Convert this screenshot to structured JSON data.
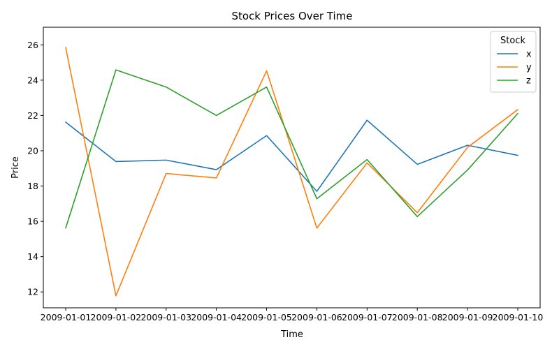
{
  "chart_data": {
    "type": "line",
    "title": "Stock Prices Over Time",
    "xlabel": "Time",
    "ylabel": "Price",
    "x": [
      "2009-01-01",
      "2009-01-02",
      "2009-01-03",
      "2009-01-04",
      "2009-01-05",
      "2009-01-06",
      "2009-01-07",
      "2009-01-08",
      "2009-01-09",
      "2009-01-10"
    ],
    "ylim": [
      11.1,
      27.0
    ],
    "yticks": [
      12,
      14,
      16,
      18,
      20,
      22,
      24,
      26
    ],
    "legend_title": "Stock",
    "legend_position": "top-right",
    "grid": false,
    "series": [
      {
        "name": "x",
        "color": "#1f77b4",
        "values": [
          21.62,
          19.39,
          19.47,
          18.93,
          20.86,
          17.7,
          21.73,
          19.23,
          20.31,
          19.74
        ]
      },
      {
        "name": "y",
        "color": "#ff7f0e",
        "values": [
          25.85,
          11.78,
          18.71,
          18.46,
          24.53,
          15.62,
          19.31,
          16.49,
          20.19,
          22.33
        ]
      },
      {
        "name": "z",
        "color": "#2ca02c",
        "values": [
          15.62,
          24.58,
          23.61,
          22.0,
          23.61,
          17.28,
          19.5,
          16.27,
          18.91,
          22.11
        ]
      }
    ]
  }
}
